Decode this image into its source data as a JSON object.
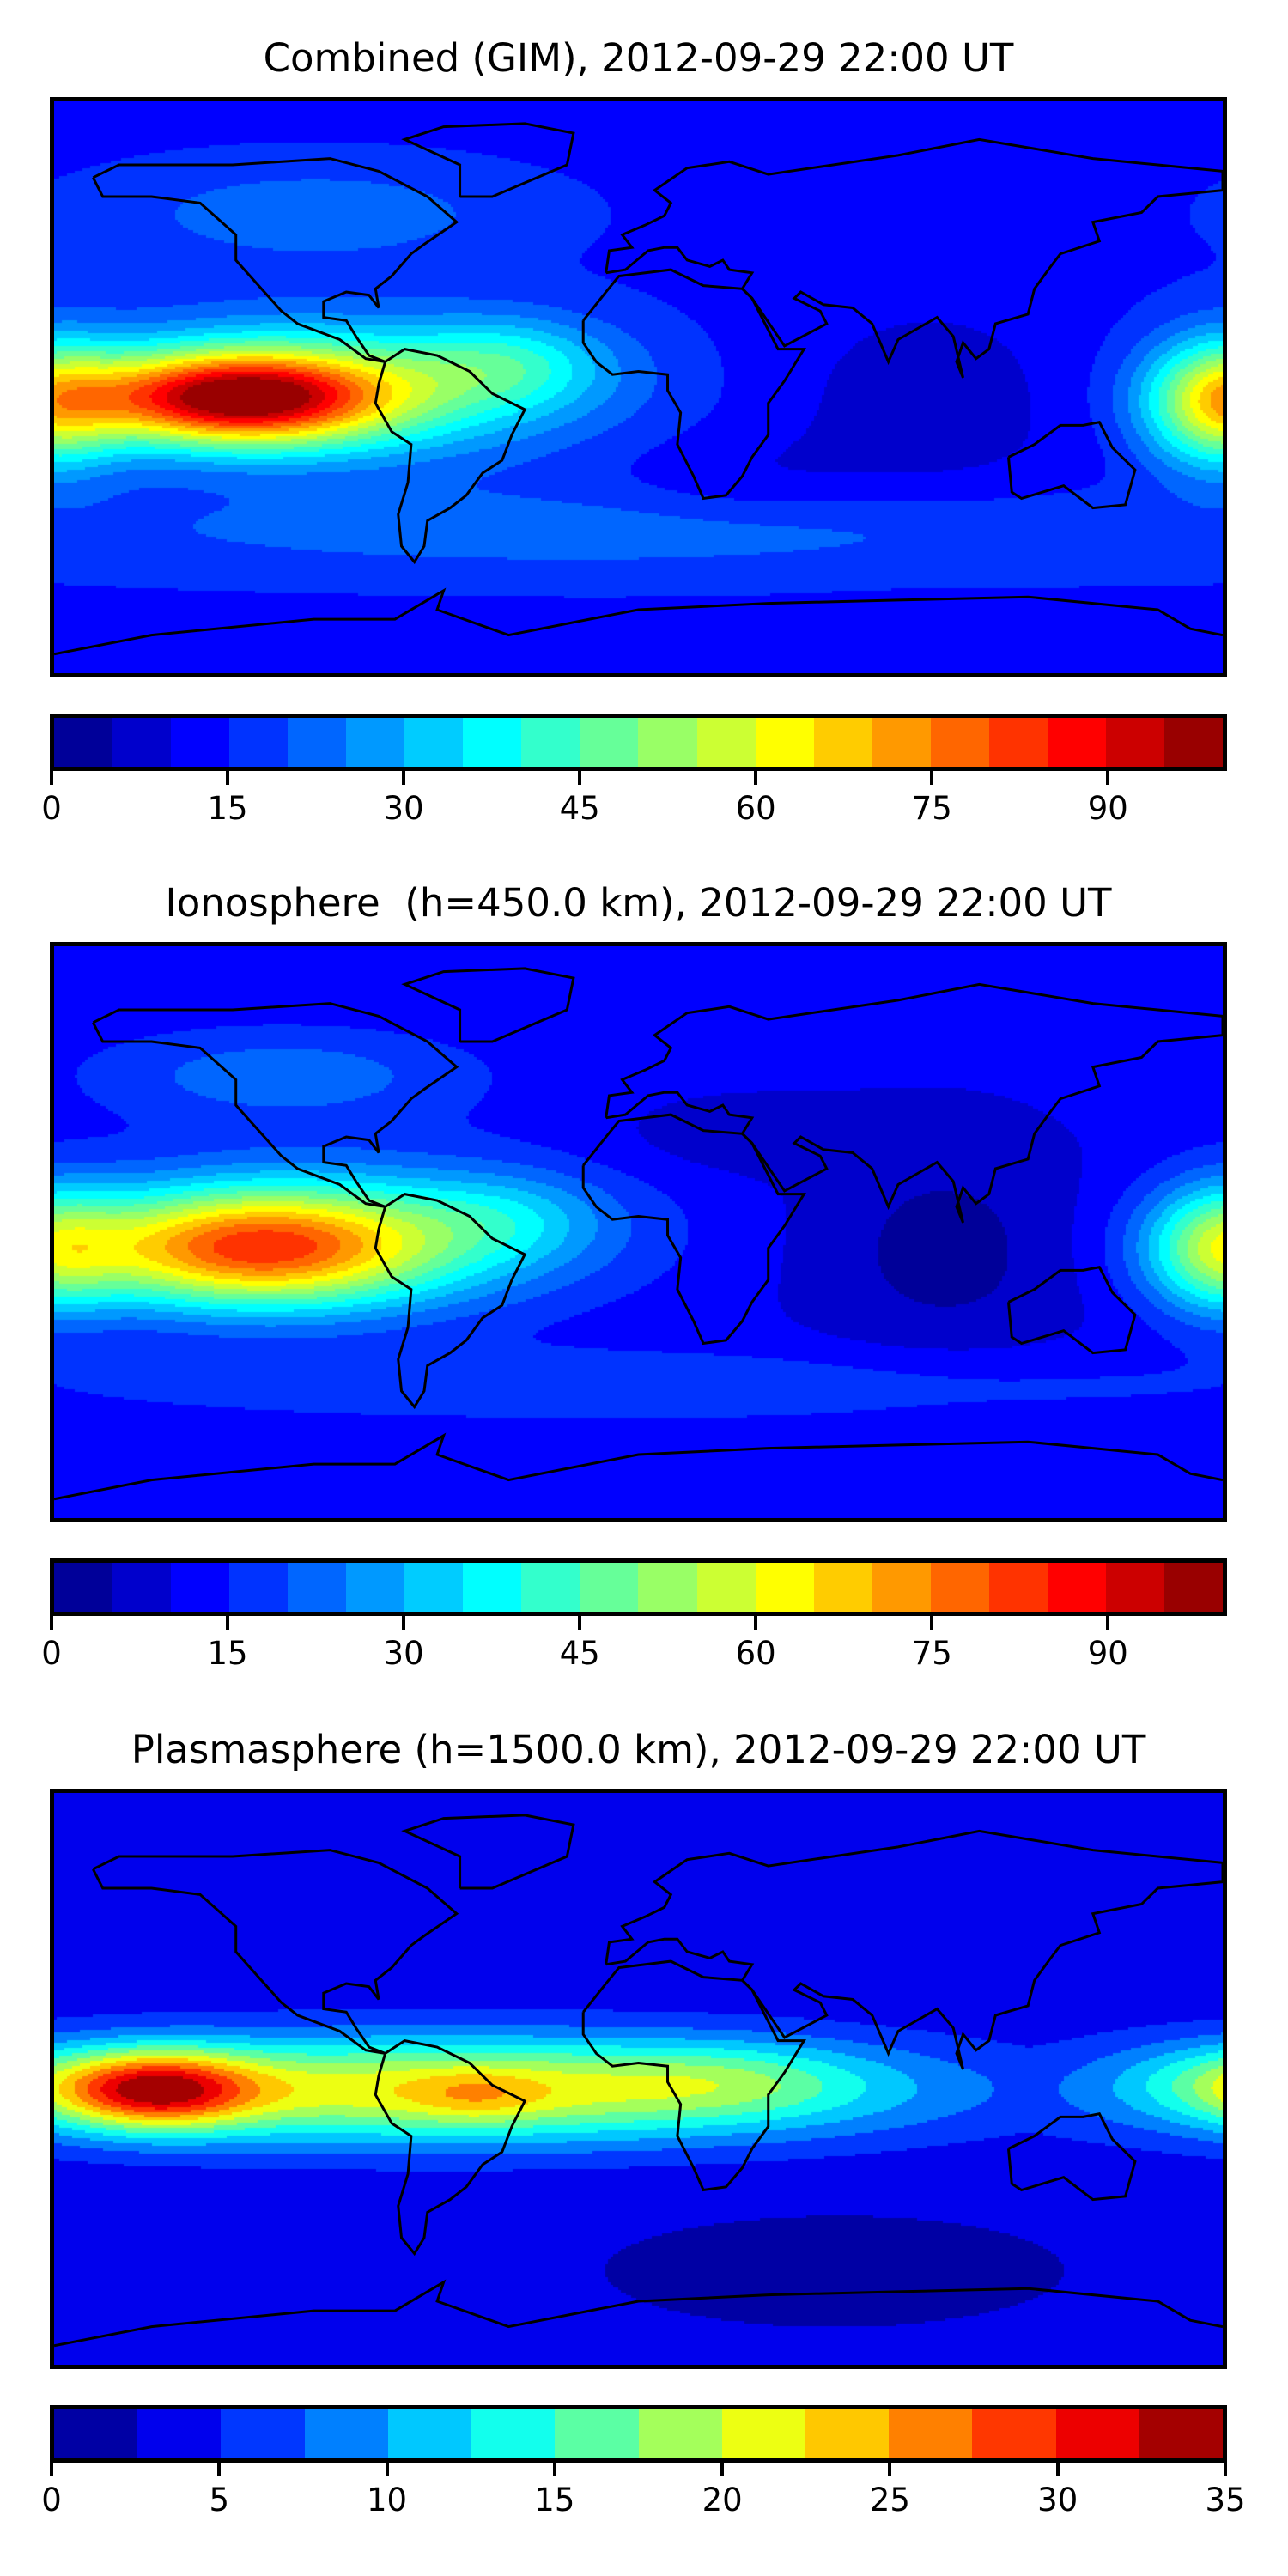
{
  "chart_data": [
    {
      "type": "heatmap",
      "title": "Combined (GIM), 2012-09-29 22:00 UT",
      "colorbar": {
        "min": 0,
        "max": 100,
        "step": 5,
        "ticks": [
          0,
          15,
          30,
          45,
          60,
          75,
          90
        ],
        "tick_labels": [
          "0",
          "15",
          "30",
          "45",
          "60",
          "75",
          "90"
        ]
      },
      "projection": "equirectangular",
      "lon_range": [
        -180,
        180
      ],
      "lat_range": [
        -90,
        90
      ],
      "field_summary": {
        "max_approx": 85,
        "max_location_lonlat": [
          -125,
          -3
        ],
        "background_approx": 15
      }
    },
    {
      "type": "heatmap",
      "title": "Ionosphere  (h=450.0 km), 2012-09-29 22:00 UT",
      "colorbar": {
        "min": 0,
        "max": 100,
        "step": 5,
        "ticks": [
          0,
          15,
          30,
          45,
          60,
          75,
          90
        ],
        "tick_labels": [
          "0",
          "15",
          "30",
          "45",
          "60",
          "75",
          "90"
        ]
      },
      "projection": "equirectangular",
      "lon_range": [
        -180,
        180
      ],
      "lat_range": [
        -90,
        90
      ],
      "field_summary": {
        "max_approx": 70,
        "max_location_lonlat": [
          -120,
          -5
        ],
        "background_approx": 10
      }
    },
    {
      "type": "heatmap",
      "title": "Plasmasphere (h=1500.0 km), 2012-09-29 22:00 UT",
      "colorbar": {
        "min": 0,
        "max": 35,
        "step": 2.5,
        "ticks": [
          0,
          5,
          10,
          15,
          20,
          25,
          30,
          35
        ],
        "tick_labels": [
          "0",
          "5",
          "10",
          "15",
          "20",
          "25",
          "30",
          "35"
        ]
      },
      "projection": "equirectangular",
      "lon_range": [
        -180,
        180
      ],
      "lat_range": [
        -90,
        90
      ],
      "field_summary": {
        "max_approx": 25,
        "max_location_lonlat": [
          -50,
          -5
        ],
        "background_approx": 3
      }
    }
  ],
  "colormap": "jet"
}
